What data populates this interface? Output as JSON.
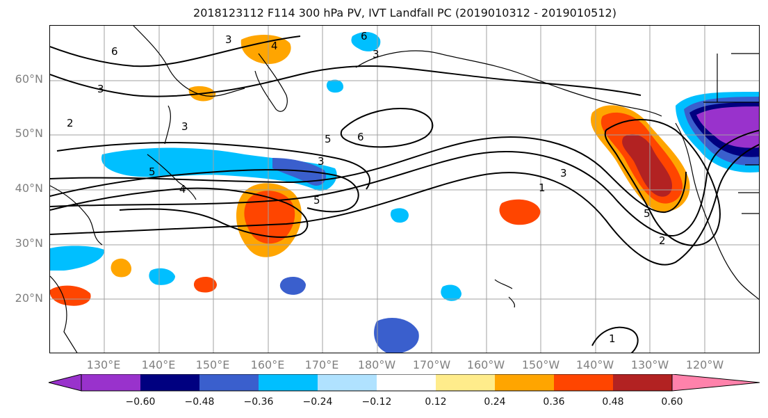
{
  "title": "2018123112 F114 300 hPa PV, IVT Landfall PC (2019010312 - 2019010512)",
  "lat_labels": [
    "60°N",
    "50°N",
    "40°N",
    "30°N",
    "20°N"
  ],
  "lon_labels": [
    "130°E",
    "140°E",
    "150°E",
    "160°E",
    "170°E",
    "180°W",
    "170°W",
    "160°W",
    "150°W",
    "140°W",
    "130°W",
    "120°W"
  ],
  "contour_labels": [
    "3",
    "6",
    "3",
    "4",
    "6",
    "3",
    "2",
    "3",
    "5",
    "6",
    "5",
    "3",
    "5",
    "4",
    "1",
    "3",
    "5",
    "2",
    "1"
  ],
  "colorbar": {
    "ticks": [
      "−0.60",
      "−0.48",
      "−0.36",
      "−0.24",
      "−0.12",
      "0.12",
      "0.24",
      "0.36",
      "0.48",
      "0.60"
    ],
    "colors": [
      "#9932cc",
      "#000080",
      "#3a5fcd",
      "#00bfff",
      "#b0e2ff",
      "#ffffff",
      "#ffec8b",
      "#ffa500",
      "#ff4500",
      "#b22222",
      "#ff82ab"
    ]
  }
}
